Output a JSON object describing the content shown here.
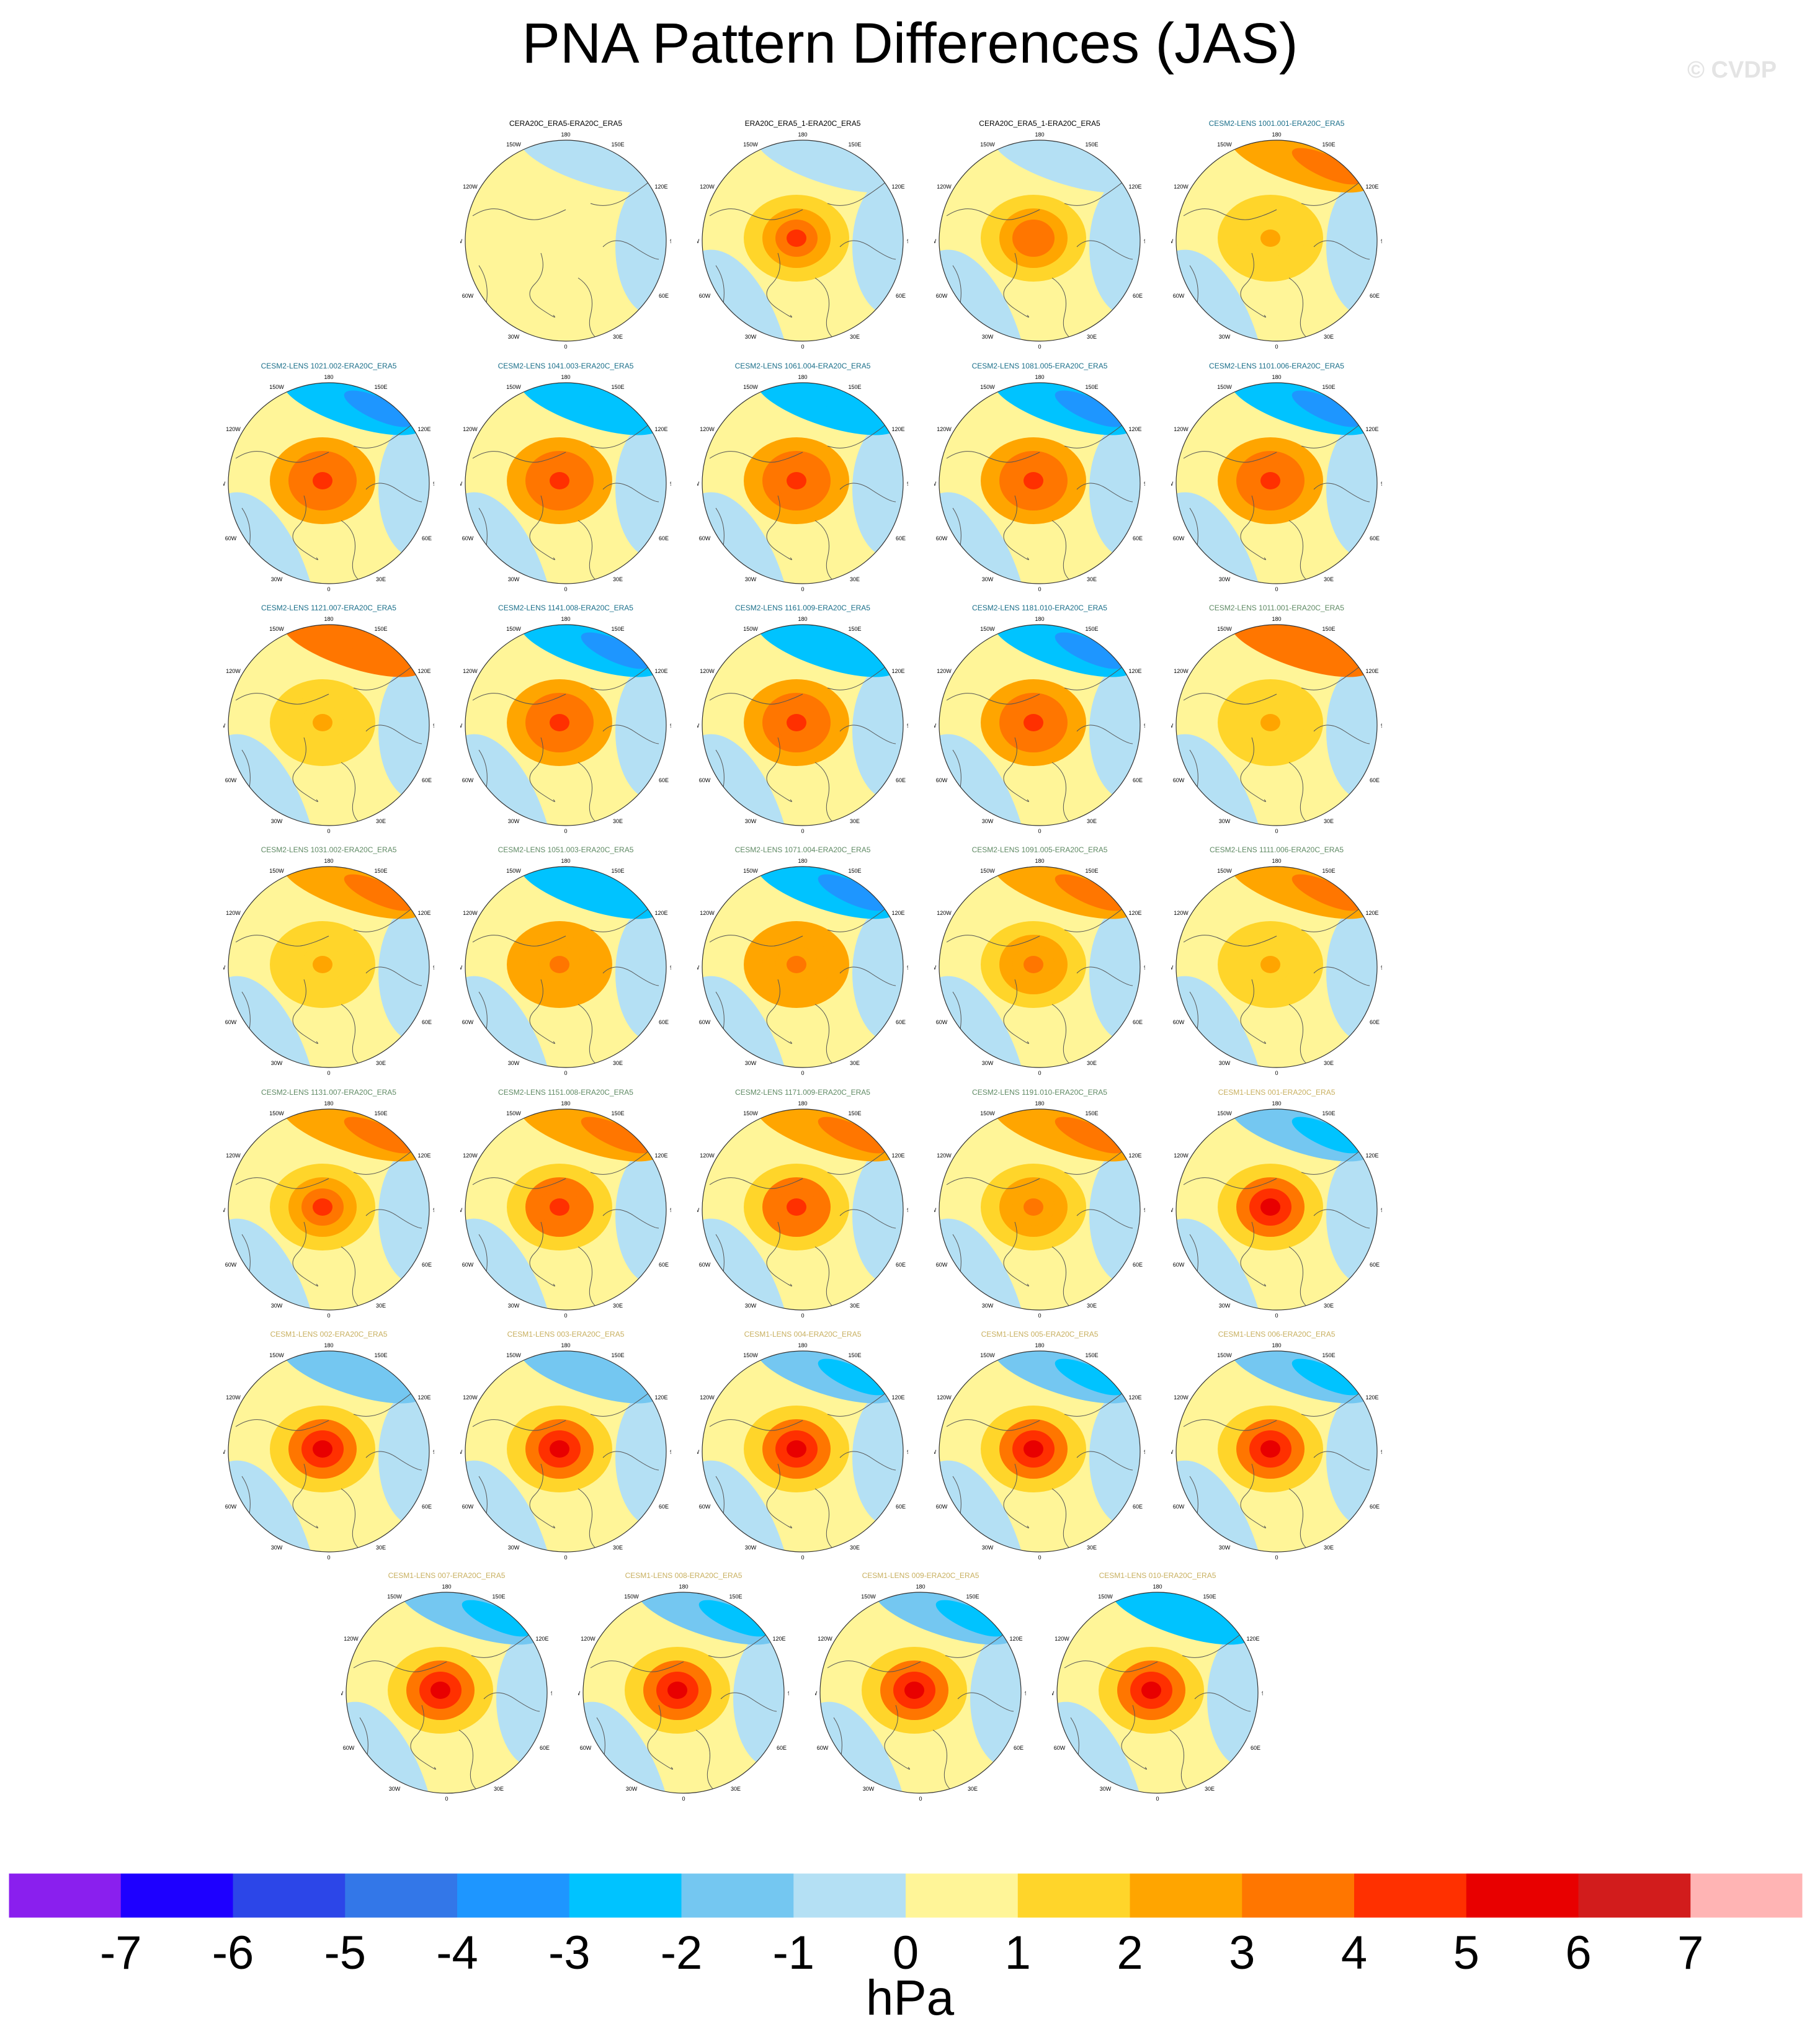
{
  "title": "PNA Pattern Differences (JAS)",
  "watermark": "© CVDP",
  "colors": {
    "obs": "#000000",
    "cesm2_first": "#1b6f8a",
    "cesm2_second": "#5f8a64",
    "cesm1": "#c8b060"
  },
  "panels": [
    {
      "title": "CERA20C_ERA5-ERA20C_ERA5",
      "color": "obs",
      "center": 0,
      "pac": -0.2,
      "atl": 0,
      "arc": 0.2
    },
    {
      "title": "ERA20C_ERA5_1-ERA20C_ERA5",
      "color": "obs",
      "center": 4.3,
      "pac": -0.8,
      "atl": -0.6,
      "arc": 1.5
    },
    {
      "title": "CERA20C_ERA5_1-ERA20C_ERA5",
      "color": "obs",
      "center": 3.8,
      "pac": -0.6,
      "atl": -0.6,
      "arc": 1.2
    },
    {
      "title": "CESM2-LENS 1001.001-ERA20C_ERA5",
      "color": "cesm2_first",
      "center": 2.2,
      "pac": 2.6,
      "atl": -0.8,
      "arc": 1.2
    },
    {
      "title": "CESM2-LENS 1021.002-ERA20C_ERA5",
      "color": "cesm2_first",
      "center": 4.8,
      "pac": -2.6,
      "atl": -0.5,
      "arc": 2.2
    },
    {
      "title": "CESM2-LENS 1041.003-ERA20C_ERA5",
      "color": "cesm2_first",
      "center": 4.6,
      "pac": -2.4,
      "atl": -0.5,
      "arc": 2.2
    },
    {
      "title": "CESM2-LENS 1061.004-ERA20C_ERA5",
      "color": "cesm2_first",
      "center": 4.2,
      "pac": -2.3,
      "atl": -0.5,
      "arc": 2.2
    },
    {
      "title": "CESM2-LENS 1081.005-ERA20C_ERA5",
      "color": "cesm2_first",
      "center": 4.5,
      "pac": -2.8,
      "atl": -0.5,
      "arc": 2.2
    },
    {
      "title": "CESM2-LENS 1101.006-ERA20C_ERA5",
      "color": "cesm2_first",
      "center": 4.7,
      "pac": -2.5,
      "atl": -0.5,
      "arc": 2.2
    },
    {
      "title": "CESM2-LENS 1121.007-ERA20C_ERA5",
      "color": "cesm2_first",
      "center": 2.4,
      "pac": 3.2,
      "atl": -0.8,
      "arc": 1.2
    },
    {
      "title": "CESM2-LENS 1141.008-ERA20C_ERA5",
      "color": "cesm2_first",
      "center": 4.3,
      "pac": -2.6,
      "atl": -0.5,
      "arc": 2
    },
    {
      "title": "CESM2-LENS 1161.009-ERA20C_ERA5",
      "color": "cesm2_first",
      "center": 4.5,
      "pac": -2.2,
      "atl": -0.5,
      "arc": 2.2
    },
    {
      "title": "CESM2-LENS 1181.010-ERA20C_ERA5",
      "color": "cesm2_first",
      "center": 4.2,
      "pac": -2.8,
      "atl": -0.5,
      "arc": 2
    },
    {
      "title": "CESM2-LENS 1011.001-ERA20C_ERA5",
      "color": "cesm2_second",
      "center": 2.3,
      "pac": 3,
      "atl": -0.8,
      "arc": 1.2
    },
    {
      "title": "CESM2-LENS 1031.002-ERA20C_ERA5",
      "color": "cesm2_second",
      "center": 2,
      "pac": 2.4,
      "atl": -0.8,
      "arc": 1.2
    },
    {
      "title": "CESM2-LENS 1051.003-ERA20C_ERA5",
      "color": "cesm2_second",
      "center": 3.6,
      "pac": -2.4,
      "atl": -0.5,
      "arc": 2
    },
    {
      "title": "CESM2-LENS 1071.004-ERA20C_ERA5",
      "color": "cesm2_second",
      "center": 3.6,
      "pac": -2.6,
      "atl": -0.5,
      "arc": 2
    },
    {
      "title": "CESM2-LENS 1091.005-ERA20C_ERA5",
      "color": "cesm2_second",
      "center": 3.2,
      "pac": 2.8,
      "atl": -0.8,
      "arc": 1.2
    },
    {
      "title": "CESM2-LENS 1111.006-ERA20C_ERA5",
      "color": "cesm2_second",
      "center": 2,
      "pac": 2.8,
      "atl": -0.8,
      "arc": 1.2
    },
    {
      "title": "CESM2-LENS 1131.007-ERA20C_ERA5",
      "color": "cesm2_second",
      "center": 4,
      "pac": 2.6,
      "atl": -0.8,
      "arc": 1.2
    },
    {
      "title": "CESM2-LENS 1151.008-ERA20C_ERA5",
      "color": "cesm2_second",
      "center": 4.8,
      "pac": 2.6,
      "atl": -0.8,
      "arc": 1.4
    },
    {
      "title": "CESM2-LENS 1171.009-ERA20C_ERA5",
      "color": "cesm2_second",
      "center": 4.6,
      "pac": 2.6,
      "atl": -0.8,
      "arc": 1.4
    },
    {
      "title": "CESM2-LENS 1191.010-ERA20C_ERA5",
      "color": "cesm2_second",
      "center": 3.6,
      "pac": 2.8,
      "atl": -0.8,
      "arc": 1.4
    },
    {
      "title": "CESM1-LENS 001-ERA20C_ERA5",
      "color": "cesm1",
      "center": 5,
      "pac": -1.6,
      "atl": -0.8,
      "arc": 1.4
    },
    {
      "title": "CESM1-LENS 002-ERA20C_ERA5",
      "color": "cesm1",
      "center": 5.6,
      "pac": -1.4,
      "atl": -0.6,
      "arc": 1.8
    },
    {
      "title": "CESM1-LENS 003-ERA20C_ERA5",
      "color": "cesm1",
      "center": 5,
      "pac": -1.2,
      "atl": -0.6,
      "arc": 1.8
    },
    {
      "title": "CESM1-LENS 004-ERA20C_ERA5",
      "color": "cesm1",
      "center": 5.2,
      "pac": -1.6,
      "atl": -0.6,
      "arc": 1.8
    },
    {
      "title": "CESM1-LENS 005-ERA20C_ERA5",
      "color": "cesm1",
      "center": 5.2,
      "pac": -1.6,
      "atl": -0.6,
      "arc": 1.8
    },
    {
      "title": "CESM1-LENS 006-ERA20C_ERA5",
      "color": "cesm1",
      "center": 5,
      "pac": -2,
      "atl": -0.6,
      "arc": 1.8
    },
    {
      "title": "CESM1-LENS 007-ERA20C_ERA5",
      "color": "cesm1",
      "center": 5.6,
      "pac": -1.8,
      "atl": -0.6,
      "arc": 1.8
    },
    {
      "title": "CESM1-LENS 008-ERA20C_ERA5",
      "color": "cesm1",
      "center": 5.4,
      "pac": -1.8,
      "atl": -0.6,
      "arc": 1.8
    },
    {
      "title": "CESM1-LENS 009-ERA20C_ERA5",
      "color": "cesm1",
      "center": 5.2,
      "pac": -1.8,
      "atl": -0.6,
      "arc": 1.8
    },
    {
      "title": "CESM1-LENS 010-ERA20C_ERA5",
      "color": "cesm1",
      "center": 5.4,
      "pac": -2.4,
      "atl": -0.6,
      "arc": 1.8
    }
  ],
  "lon_labels": {
    "top": "180",
    "bottom": "0",
    "left": "90W",
    "right": "90E",
    "upper_left_1": "150W",
    "upper_left_2": "120W",
    "upper_right_1": "150E",
    "upper_right_2": "120E",
    "lower_left_1": "60W",
    "lower_left_2": "30W",
    "lower_right_1": "60E",
    "lower_right_2": "30E"
  },
  "colorbar": {
    "levels": [
      -7,
      -6,
      -5,
      -4,
      -3,
      -2,
      -1,
      0,
      1,
      2,
      3,
      4,
      5,
      6,
      7
    ],
    "tick_labels": [
      "-7",
      "-6",
      "-5",
      "-4",
      "-3",
      "-2",
      "-1",
      "0",
      "1",
      "2",
      "3",
      "4",
      "5",
      "6",
      "7"
    ],
    "colors": [
      "#8a1fee",
      "#1e00ff",
      "#2c46e8",
      "#3377e8",
      "#1e96ff",
      "#00c3ff",
      "#74c7f1",
      "#b4e0f4",
      "#fff598",
      "#ffd52a",
      "#ffa500",
      "#ff7600",
      "#ff3000",
      "#e80000",
      "#d21c1c",
      "#ffb4b4"
    ],
    "units": "hPa"
  }
}
